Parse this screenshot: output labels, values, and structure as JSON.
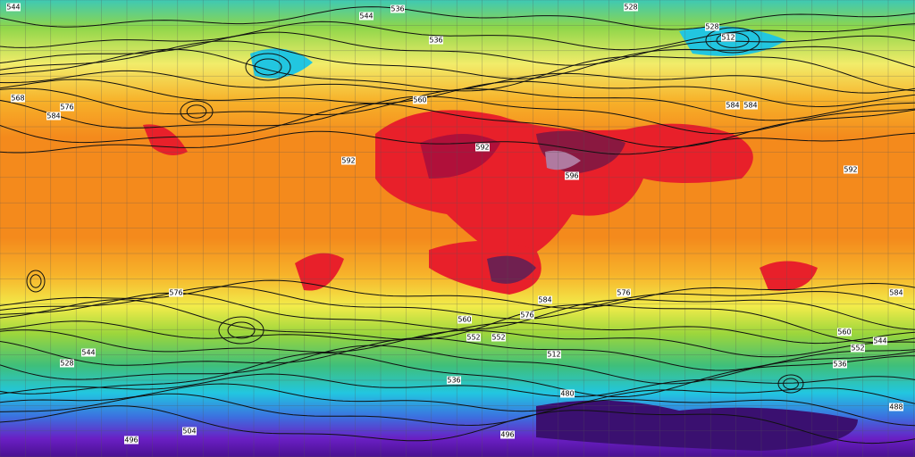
{
  "contour_labels": [
    544,
    536,
    528,
    544,
    536,
    528,
    512,
    568,
    584,
    576,
    560,
    584,
    592,
    596,
    592,
    592,
    584,
    576,
    584,
    576,
    560,
    552,
    544,
    536,
    528,
    552,
    544,
    536,
    512,
    480,
    496,
    504,
    496,
    488,
    584,
    576,
    560,
    552
  ]
}
